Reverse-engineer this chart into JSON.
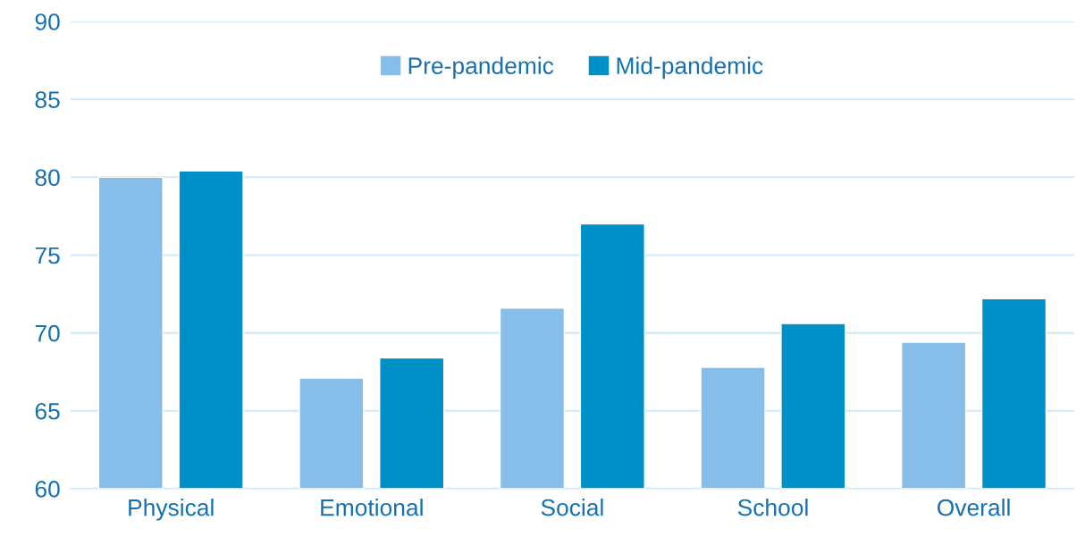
{
  "chart_data": {
    "type": "bar",
    "categories": [
      "Physical",
      "Emotional",
      "Social",
      "School",
      "Overall"
    ],
    "series": [
      {
        "name": "Pre-pandemic",
        "color": "#86bde9",
        "values": [
          80.0,
          67.1,
          71.6,
          67.8,
          69.4
        ]
      },
      {
        "name": "Mid-pandemic",
        "color": "#0090c8",
        "values": [
          80.4,
          68.4,
          77.0,
          70.6,
          72.2
        ]
      }
    ],
    "ylim": [
      60,
      90
    ],
    "yticks": [
      60,
      65,
      70,
      75,
      80,
      85,
      90
    ],
    "grid": "y",
    "legend": "top"
  }
}
